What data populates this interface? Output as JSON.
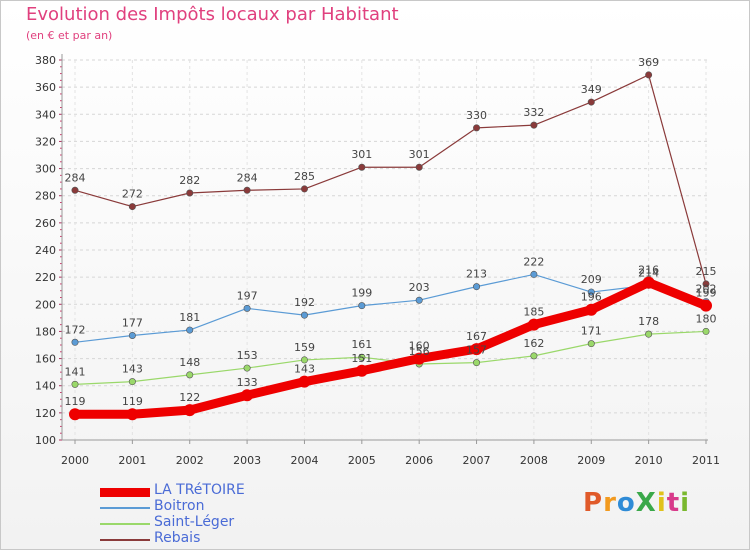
{
  "header": {
    "title": "Evolution des Impôts locaux par Habitant",
    "subtitle": "(en € et par an)"
  },
  "logo": {
    "text": "ProXiti",
    "colors": [
      "#e05a2a",
      "#f29a1f",
      "#2e8bd6",
      "#3aa84a",
      "#e0c21a",
      "#d83a8a",
      "#7ab82e"
    ]
  },
  "chart_data": {
    "type": "line",
    "x": [
      "2000",
      "2001",
      "2002",
      "2003",
      "2004",
      "2005",
      "2006",
      "2007",
      "2008",
      "2009",
      "2010",
      "2011"
    ],
    "ylim": [
      100,
      380
    ],
    "yticks": [
      100,
      120,
      140,
      160,
      180,
      200,
      220,
      240,
      260,
      280,
      300,
      320,
      340,
      360,
      380
    ],
    "grid": "horizontal-dashed",
    "legend_position": "bottom-left",
    "series": [
      {
        "name": "LA TRéTOIRE",
        "color": "#ee0000",
        "values": [
          119,
          119,
          122,
          133,
          143,
          151,
          160,
          167,
          185,
          196,
          216,
          199
        ],
        "labels": [
          "119",
          "119",
          "122",
          "133",
          "143",
          "151",
          "160",
          "167",
          "185",
          "196",
          "216",
          "199"
        ]
      },
      {
        "name": "Boitron",
        "color": "#5b9bd5",
        "values": [
          172,
          177,
          181,
          197,
          192,
          199,
          203,
          213,
          222,
          209,
          214,
          202
        ],
        "labels": [
          "172",
          "177",
          "181",
          "197",
          "192",
          "199",
          "203",
          "213",
          "222",
          "209",
          "214",
          "202"
        ]
      },
      {
        "name": "Saint-Léger",
        "color": "#9ad86a",
        "values": [
          141,
          143,
          148,
          153,
          159,
          161,
          156,
          157,
          162,
          171,
          178,
          180
        ],
        "labels": [
          "141",
          "143",
          "148",
          "153",
          "159",
          "161",
          "156",
          "157",
          "162",
          "171",
          "178",
          "180"
        ]
      },
      {
        "name": "Rebais",
        "color": "#8a3a3a",
        "values": [
          284,
          272,
          282,
          284,
          285,
          301,
          301,
          330,
          332,
          349,
          369,
          215
        ],
        "labels": [
          "284",
          "272",
          "282",
          "284",
          "285",
          "301",
          "301",
          "330",
          "332",
          "349",
          "369",
          "215"
        ]
      }
    ]
  }
}
